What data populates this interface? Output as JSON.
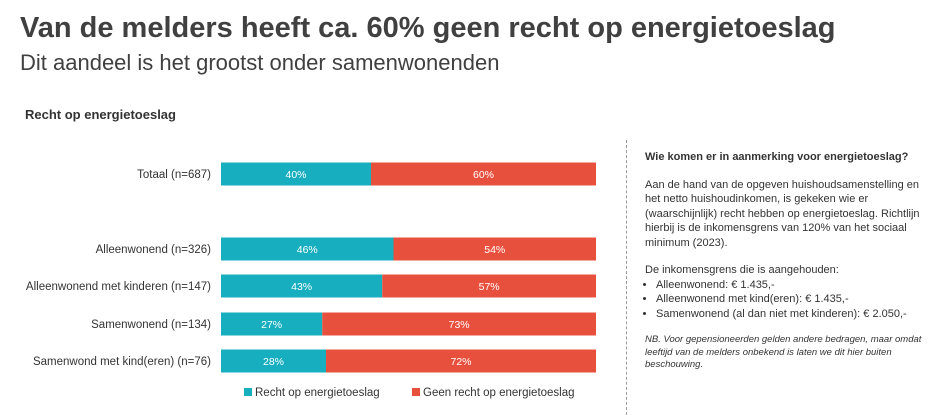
{
  "header": {
    "title": "Van de melders heeft ca. 60% geen recht op energietoeslag",
    "subtitle": "Dit aandeel is het grootst onder samenwonenden"
  },
  "colors": {
    "recht": "#17aebf",
    "geen_recht": "#e8503e"
  },
  "chart_data": {
    "type": "bar",
    "orientation": "horizontal",
    "stacked": true,
    "normalized": true,
    "title": "Recht op energietoeslag",
    "categories": [
      "Totaal (n=687)",
      "Alleenwonend (n=326)",
      "Alleenwonend met kinderen (n=147)",
      "Samenwonend (n=134)",
      "Samenwond met kind(eren) (n=76)"
    ],
    "series": [
      {
        "name": "Recht op energietoeslag",
        "values": [
          40,
          46,
          43,
          27,
          28
        ],
        "labels": [
          "40%",
          "46%",
          "43%",
          "27%",
          "28%"
        ],
        "color": "#17aebf"
      },
      {
        "name": "Geen recht op energietoeslag",
        "values": [
          60,
          54,
          57,
          73,
          72
        ],
        "labels": [
          "60%",
          "54%",
          "57%",
          "73%",
          "72%"
        ],
        "color": "#e8503e"
      }
    ],
    "xlim": [
      0,
      100
    ],
    "grid": false,
    "legend": "bottom"
  },
  "sidebar": {
    "heading": "Wie komen er in aanmerking voor energietoeslag?",
    "paragraph": "Aan de hand van de opgeven huishoudsamenstelling en het netto huishoudinkomen, is gekeken wie er (waarschijnlijk) recht hebben op energietoeslag. Richtlijn hierbij is de inkomensgrens van 120% van het sociaal minimum (2023).",
    "list_intro": "De inkomensgrens die is aangehouden:",
    "items": [
      "Alleenwonend: € 1.435,-",
      "Alleenwonend met kind(eren): € 1.435,-",
      "Samenwonend (al dan niet met kinderen): € 2.050,-"
    ],
    "note": "NB. Voor gepensioneerden gelden andere bedragen, maar omdat leeftijd van de melders onbekend is laten we dit hier buiten beschouwing."
  }
}
